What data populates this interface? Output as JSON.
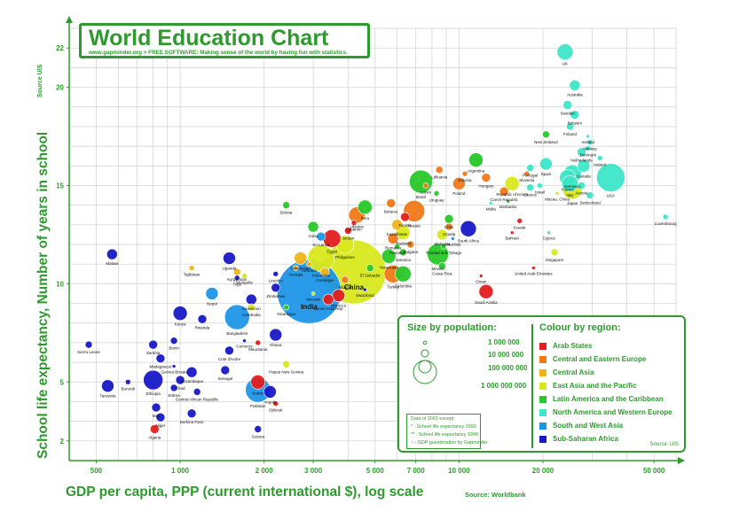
{
  "title": "World Education Chart",
  "subtitle": "www.gapminder.org > FREE SOFTWARE: Making sense of the world by having fun with  statistics.",
  "y_axis": {
    "label": "School life expectancy, Number of years in school",
    "source": "Source UIS"
  },
  "x_axis": {
    "label": "GDP per capita, PPP (current international $), log scale",
    "source": "Source: Worldbank"
  },
  "legend": {
    "size_title": "Size by population:",
    "size_labels": [
      "1 000 000",
      "10 000 000",
      "100 000 000",
      "1 000 000 000"
    ],
    "colour_title": "Colour by region:",
    "regions": [
      {
        "name": "Arab States",
        "color": "#e41e1e"
      },
      {
        "name": "Central and Eastern Europe",
        "color": "#f07818"
      },
      {
        "name": "Central Asia",
        "color": "#f0b418"
      },
      {
        "name": "East Asia and the Pacific",
        "color": "#d8e81c"
      },
      {
        "name": "Latin America and the Caribbean",
        "color": "#28c828"
      },
      {
        "name": "North America and Western Europe",
        "color": "#3ce6c8"
      },
      {
        "name": "South and West Asia",
        "color": "#1e96e8"
      },
      {
        "name": "Sub-Saharan Africa",
        "color": "#1818c8"
      }
    ],
    "notes": [
      "Data of 2001 except:",
      "*   : School life expectancy 1990",
      "**  : School life expectancy 1998",
      "~   : GDP guestimation by Gapminder"
    ],
    "source": "Source: UIS"
  },
  "chart_data": {
    "type": "scatter",
    "title": "World Education Chart",
    "xlabel": "GDP per capita, PPP (current international $), log scale",
    "ylabel": "School life expectancy, Number of years in school",
    "x_scale": "log",
    "xlim": [
      400,
      60000
    ],
    "ylim": [
      1,
      23
    ],
    "grid": true,
    "x_ticks": [
      500,
      1000,
      2000,
      3000,
      5000,
      7000,
      10000,
      20000,
      50000
    ],
    "x_tick_labels": [
      "500",
      "1 000",
      "2 000",
      "3 000",
      "5 000",
      "7 000",
      "10 000",
      "20 000",
      "50 000"
    ],
    "y_ticks": [
      2,
      5,
      10,
      15,
      20,
      22
    ],
    "y_tick_labels": [
      "2",
      "5",
      "10",
      "15",
      "20",
      "22"
    ],
    "legend_position": "bottom-right",
    "points": [
      {
        "name": "UK",
        "x": 24000,
        "y": 21.8,
        "r": 9,
        "region": 5
      },
      {
        "name": "Australia",
        "x": 26000,
        "y": 20.1,
        "r": 6,
        "region": 5
      },
      {
        "name": "Sweden",
        "x": 24500,
        "y": 19.1,
        "r": 5,
        "region": 5
      },
      {
        "name": "Belgium",
        "x": 26000,
        "y": 18.6,
        "r": 5,
        "region": 5
      },
      {
        "name": "Finland",
        "x": 25000,
        "y": 18.0,
        "r": 4,
        "region": 5
      },
      {
        "name": "New Zealand",
        "x": 20500,
        "y": 17.6,
        "r": 4,
        "region": 4
      },
      {
        "name": "Iceland",
        "x": 29000,
        "y": 17.5,
        "r": 2,
        "region": 5
      },
      {
        "name": "Norway",
        "x": 29500,
        "y": 17.2,
        "r": 3,
        "region": 5
      },
      {
        "name": "Netherlands",
        "x": 27500,
        "y": 16.7,
        "r": 5,
        "region": 5
      },
      {
        "name": "Denmark",
        "x": 29000,
        "y": 16.9,
        "r": 3,
        "region": 5
      },
      {
        "name": "Ireland",
        "x": 32000,
        "y": 16.4,
        "r": 3,
        "region": 5
      },
      {
        "name": "Canada",
        "x": 28000,
        "y": 16.0,
        "r": 7,
        "region": 5
      },
      {
        "name": "Spain",
        "x": 20500,
        "y": 16.1,
        "r": 7,
        "region": 5
      },
      {
        "name": "Portugal",
        "x": 18000,
        "y": 15.9,
        "r": 4,
        "region": 5
      },
      {
        "name": "Germany",
        "x": 25500,
        "y": 15.6,
        "r": 10,
        "region": 5
      },
      {
        "name": "France",
        "x": 24500,
        "y": 15.4,
        "r": 9,
        "region": 5
      },
      {
        "name": "Italy",
        "x": 25000,
        "y": 15.1,
        "r": 9,
        "region": 5
      },
      {
        "name": "Austria",
        "x": 27500,
        "y": 15.0,
        "r": 4,
        "region": 5
      },
      {
        "name": "Greece",
        "x": 18000,
        "y": 14.9,
        "r": 4,
        "region": 5
      },
      {
        "name": "USA",
        "x": 35000,
        "y": 15.4,
        "r": 16,
        "region": 5
      },
      {
        "name": "Japan",
        "x": 25500,
        "y": 14.8,
        "r": 11,
        "region": 3
      },
      {
        "name": "Switzerland",
        "x": 29500,
        "y": 14.5,
        "r": 4,
        "region": 5
      },
      {
        "name": "Macao, China",
        "x": 22500,
        "y": 14.6,
        "r": 2,
        "region": 3
      },
      {
        "name": "Luxembourg",
        "x": 55000,
        "y": 13.4,
        "r": 3,
        "region": 5
      },
      {
        "name": "Slovenia",
        "x": 17500,
        "y": 15.6,
        "r": 3,
        "region": 1
      },
      {
        "name": "Republic of Korea",
        "x": 15500,
        "y": 15.1,
        "r": 8,
        "region": 3
      },
      {
        "name": "Israel",
        "x": 19500,
        "y": 15.0,
        "r": 3,
        "region": 5
      },
      {
        "name": "Malta",
        "x": 13000,
        "y": 14.1,
        "r": 2,
        "region": 5
      },
      {
        "name": "Barbados",
        "x": 15000,
        "y": 14.2,
        "r": 2,
        "region": 4
      },
      {
        "name": "Argentina",
        "x": 11500,
        "y": 16.3,
        "r": 8,
        "region": 4
      },
      {
        "name": "Lithuania",
        "x": 8500,
        "y": 15.8,
        "r": 4,
        "region": 1
      },
      {
        "name": "Estonia",
        "x": 10500,
        "y": 15.6,
        "r": 3,
        "region": 1
      },
      {
        "name": "Hungary",
        "x": 12500,
        "y": 15.4,
        "r": 5,
        "region": 1
      },
      {
        "name": "Czech Republic",
        "x": 14500,
        "y": 14.7,
        "r": 5,
        "region": 1
      },
      {
        "name": "Poland",
        "x": 10000,
        "y": 15.1,
        "r": 7,
        "region": 1
      },
      {
        "name": "Latvia",
        "x": 7600,
        "y": 15.0,
        "r": 3,
        "region": 1
      },
      {
        "name": "Uruguay",
        "x": 8300,
        "y": 14.6,
        "r": 3,
        "region": 4
      },
      {
        "name": "Brazil",
        "x": 7300,
        "y": 15.2,
        "r": 13,
        "region": 4
      },
      {
        "name": "Russia",
        "x": 6900,
        "y": 13.7,
        "r": 12,
        "region": 1
      },
      {
        "name": "Belarus",
        "x": 5700,
        "y": 14.1,
        "r": 5,
        "region": 1
      },
      {
        "name": "Tunisia",
        "x": 6400,
        "y": 13.4,
        "r": 5,
        "region": 0
      },
      {
        "name": "Kazakhstan",
        "x": 6000,
        "y": 13.0,
        "r": 6,
        "region": 2
      },
      {
        "name": "Thailand",
        "x": 6300,
        "y": 12.6,
        "r": 8,
        "region": 3
      },
      {
        "name": "Chile",
        "x": 9200,
        "y": 13.3,
        "r": 5,
        "region": 4
      },
      {
        "name": "Croatia",
        "x": 9200,
        "y": 12.9,
        "r": 4,
        "region": 1
      },
      {
        "name": "Malaysia",
        "x": 8700,
        "y": 12.5,
        "r": 6,
        "region": 3
      },
      {
        "name": "Romania",
        "x": 5800,
        "y": 12.3,
        "r": 6,
        "region": 1
      },
      {
        "name": "Trinidad and Tobago",
        "x": 8800,
        "y": 11.9,
        "r": 3,
        "region": 4
      },
      {
        "name": "Mauritius",
        "x": 9500,
        "y": 12.3,
        "r": 2,
        "region": 6
      },
      {
        "name": "South Africa",
        "x": 10800,
        "y": 12.8,
        "r": 9,
        "region": 7
      },
      {
        "name": "Kuwait",
        "x": 16500,
        "y": 13.2,
        "r": 3,
        "region": 0
      },
      {
        "name": "Bahrain",
        "x": 15500,
        "y": 12.6,
        "r": 2,
        "region": 0
      },
      {
        "name": "Cyprus",
        "x": 21000,
        "y": 12.6,
        "r": 2,
        "region": 5
      },
      {
        "name": "Singapore",
        "x": 22000,
        "y": 11.6,
        "r": 4,
        "region": 3
      },
      {
        "name": "United Arab Emirates",
        "x": 18500,
        "y": 10.8,
        "r": 2,
        "region": 0
      },
      {
        "name": "Oman",
        "x": 12000,
        "y": 10.4,
        "r": 2,
        "region": 0
      },
      {
        "name": "Saudi Arabia",
        "x": 12500,
        "y": 9.6,
        "r": 8,
        "region": 0
      },
      {
        "name": "Mexico",
        "x": 8400,
        "y": 11.5,
        "r": 12,
        "region": 4
      },
      {
        "name": "Panama",
        "x": 6000,
        "y": 11.9,
        "r": 3,
        "region": 4
      },
      {
        "name": "Bulgaria",
        "x": 6700,
        "y": 12.0,
        "r": 4,
        "region": 1
      },
      {
        "name": "Venezuela",
        "x": 5600,
        "y": 11.4,
        "r": 8,
        "region": 4
      },
      {
        "name": "Jamaica",
        "x": 6300,
        "y": 11.6,
        "r": 4,
        "region": 4
      },
      {
        "name": "Turkey",
        "x": 5800,
        "y": 10.5,
        "r": 10,
        "region": 1
      },
      {
        "name": "Colombia",
        "x": 6300,
        "y": 10.5,
        "r": 9,
        "region": 4
      },
      {
        "name": "Costa Rica",
        "x": 8700,
        "y": 10.9,
        "r": 4,
        "region": 4
      },
      {
        "name": "Peru",
        "x": 4600,
        "y": 13.9,
        "r": 8,
        "region": 4
      },
      {
        "name": "Ukraine",
        "x": 4300,
        "y": 13.5,
        "r": 9,
        "region": 1
      },
      {
        "name": "Lebanon",
        "x": 4200,
        "y": 13.1,
        "r": 3,
        "region": 0
      },
      {
        "name": "Jordan",
        "x": 4000,
        "y": 12.7,
        "r": 4,
        "region": 0
      },
      {
        "name": "Philippines",
        "x": 3900,
        "y": 12.0,
        "r": 10,
        "region": 3
      },
      {
        "name": "Egypt",
        "x": 3500,
        "y": 12.3,
        "r": 10,
        "region": 0
      },
      {
        "name": "Cuba",
        "x": 3000,
        "y": 12.9,
        "r": 6,
        "region": 4
      },
      {
        "name": "Sri Lanka",
        "x": 3200,
        "y": 12.4,
        "r": 5,
        "region": 6
      },
      {
        "name": "Uzbekistan",
        "x": 2700,
        "y": 11.3,
        "r": 7,
        "region": 2
      },
      {
        "name": "Armenia",
        "x": 2900,
        "y": 11.0,
        "r": 3,
        "region": 2
      },
      {
        "name": "Georgia",
        "x": 2600,
        "y": 10.8,
        "r": 3,
        "region": 2
      },
      {
        "name": "Indonesia",
        "x": 3200,
        "y": 11.3,
        "r": 15,
        "region": 3
      },
      {
        "name": "Bolivia",
        "x": 2400,
        "y": 14.0,
        "r": 4,
        "region": 4
      },
      {
        "name": "Azerbaijan",
        "x": 3300,
        "y": 10.6,
        "r": 5,
        "region": 2
      },
      {
        "name": "Albania",
        "x": 3900,
        "y": 10.2,
        "r": 4,
        "region": 1
      },
      {
        "name": "El Salvador",
        "x": 4800,
        "y": 10.8,
        "r": 4,
        "region": 4
      },
      {
        "name": "China",
        "x": 4200,
        "y": 10.6,
        "r": 36,
        "region": 3
      },
      {
        "name": "Morocco",
        "x": 3700,
        "y": 9.4,
        "r": 7,
        "region": 0
      },
      {
        "name": "Syrian Arab Rep",
        "x": 3400,
        "y": 9.2,
        "r": 6,
        "region": 0
      },
      {
        "name": "Swaziland",
        "x": 4600,
        "y": 9.7,
        "r": 2,
        "region": 7
      },
      {
        "name": "India",
        "x": 2900,
        "y": 9.6,
        "r": 36,
        "region": 6
      },
      {
        "name": "Vanuatu",
        "x": 3000,
        "y": 9.5,
        "r": 2,
        "region": 3
      },
      {
        "name": "Nicaragua",
        "x": 2400,
        "y": 8.8,
        "r": 3,
        "region": 4
      },
      {
        "name": "Kyrgyzstan",
        "x": 1600,
        "y": 10.6,
        "r": 4,
        "region": 2
      },
      {
        "name": "Tajikistan",
        "x": 1100,
        "y": 10.8,
        "r": 3,
        "region": 2
      },
      {
        "name": "Mongolia",
        "x": 1700,
        "y": 10.4,
        "r": 3,
        "region": 3
      },
      {
        "name": "Zimbabwe",
        "x": 2200,
        "y": 9.8,
        "r": 5,
        "region": 7
      },
      {
        "name": "Cameroon",
        "x": 1800,
        "y": 9.2,
        "r": 6,
        "region": 7
      },
      {
        "name": "Lesotho",
        "x": 2200,
        "y": 10.5,
        "r": 3,
        "region": 7
      },
      {
        "name": "Togo",
        "x": 1600,
        "y": 10.3,
        "r": 3,
        "region": 7
      },
      {
        "name": "Uganda",
        "x": 1500,
        "y": 11.3,
        "r": 7,
        "region": 7
      },
      {
        "name": "Nepal",
        "x": 1300,
        "y": 9.5,
        "r": 7,
        "region": 6
      },
      {
        "name": "Cambodia",
        "x": 1800,
        "y": 8.8,
        "r": 4,
        "region": 3
      },
      {
        "name": "Bangladesh",
        "x": 1600,
        "y": 8.3,
        "r": 14,
        "region": 6
      },
      {
        "name": "Kenya",
        "x": 1000,
        "y": 8.5,
        "r": 8,
        "region": 7
      },
      {
        "name": "Rwanda",
        "x": 1200,
        "y": 8.2,
        "r": 5,
        "region": 7
      },
      {
        "name": "Ghana",
        "x": 2200,
        "y": 7.4,
        "r": 7,
        "region": 7
      },
      {
        "name": "Comoros",
        "x": 1700,
        "y": 7.1,
        "r": 2,
        "region": 7
      },
      {
        "name": "Mauritania",
        "x": 1900,
        "y": 7.0,
        "r": 3,
        "region": 0
      },
      {
        "name": "Cote d'Ivoire",
        "x": 1500,
        "y": 6.6,
        "r": 5,
        "region": 7
      },
      {
        "name": "Malawi",
        "x": 570,
        "y": 11.5,
        "r": 6,
        "region": 7
      },
      {
        "name": "Sierra Leone",
        "x": 470,
        "y": 6.9,
        "r": 4,
        "region": 7
      },
      {
        "name": "Zambia",
        "x": 800,
        "y": 6.9,
        "r": 5,
        "region": 7
      },
      {
        "name": "Benin",
        "x": 950,
        "y": 7.1,
        "r": 4,
        "region": 7
      },
      {
        "name": "Madagascar",
        "x": 850,
        "y": 6.2,
        "r": 5,
        "region": 7
      },
      {
        "name": "Guinea Bissau",
        "x": 950,
        "y": 5.8,
        "r": 2,
        "region": 7
      },
      {
        "name": "Mozambique",
        "x": 1100,
        "y": 5.5,
        "r": 6,
        "region": 7
      },
      {
        "name": "Senegal",
        "x": 1450,
        "y": 5.6,
        "r": 5,
        "region": 7
      },
      {
        "name": "Ethiopia",
        "x": 800,
        "y": 5.1,
        "r": 11,
        "region": 7
      },
      {
        "name": "Burundi",
        "x": 650,
        "y": 5.0,
        "r": 3,
        "region": 7
      },
      {
        "name": "Tanzania",
        "x": 550,
        "y": 4.8,
        "r": 7,
        "region": 7
      },
      {
        "name": "Chad",
        "x": 1000,
        "y": 5.1,
        "r": 5,
        "region": 7
      },
      {
        "name": "Eritrea",
        "x": 950,
        "y": 4.7,
        "r": 4,
        "region": 7
      },
      {
        "name": "Central African Republic",
        "x": 1150,
        "y": 4.5,
        "r": 4,
        "region": 7
      },
      {
        "name": "Papua New Guinea",
        "x": 2400,
        "y": 5.9,
        "r": 4,
        "region": 3
      },
      {
        "name": "Sudan",
        "x": 1900,
        "y": 5.0,
        "r": 8,
        "region": 0
      },
      {
        "name": "Angola",
        "x": 2100,
        "y": 4.5,
        "r": 7,
        "region": 7
      },
      {
        "name": "Pakistan",
        "x": 1900,
        "y": 4.6,
        "r": 14,
        "region": 6
      },
      {
        "name": "Djibouti",
        "x": 2200,
        "y": 3.9,
        "r": 3,
        "region": 0
      },
      {
        "name": "Mali",
        "x": 820,
        "y": 3.7,
        "r": 5,
        "region": 7
      },
      {
        "name": "Niger",
        "x": 850,
        "y": 3.2,
        "r": 5,
        "region": 7
      },
      {
        "name": "Burkina Faso",
        "x": 1100,
        "y": 3.4,
        "r": 5,
        "region": 7
      },
      {
        "name": "Algeria",
        "x": 810,
        "y": 2.6,
        "r": 5,
        "region": 0
      },
      {
        "name": "Guinea",
        "x": 1900,
        "y": 2.6,
        "r": 4,
        "region": 7
      }
    ]
  }
}
